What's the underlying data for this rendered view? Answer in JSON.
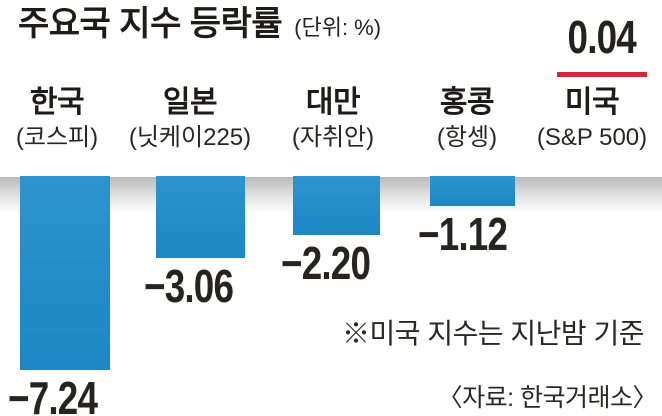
{
  "header": {
    "title": "주요국 지수 등락률",
    "unit": "(단위: %)"
  },
  "chart_data": {
    "type": "bar",
    "title": "주요국 지수 등락률",
    "unit": "%",
    "orientation": "vertical-from-zero-baseline",
    "grid": false,
    "legend": "none",
    "categories": [
      "한국",
      "일본",
      "대만",
      "홍콩",
      "미국"
    ],
    "index_names": [
      "(코스피)",
      "(닛케이225)",
      "(자취안)",
      "(항셍)",
      "(S&P 500)"
    ],
    "values": [
      -7.24,
      -3.06,
      -2.2,
      -1.12,
      0.04
    ],
    "value_labels": [
      "−7.24",
      "−3.06",
      "−2.20",
      "−1.12",
      "0.04"
    ],
    "bar_color": "#1f8bc7",
    "positive_accent_color": "#ce2b3a",
    "note_on_positive": "US value shown as number with red underline instead of bar"
  },
  "footnotes": {
    "note": "※미국 지수는 지난밤 기준",
    "source": "〈자료: 한국거래소〉"
  }
}
